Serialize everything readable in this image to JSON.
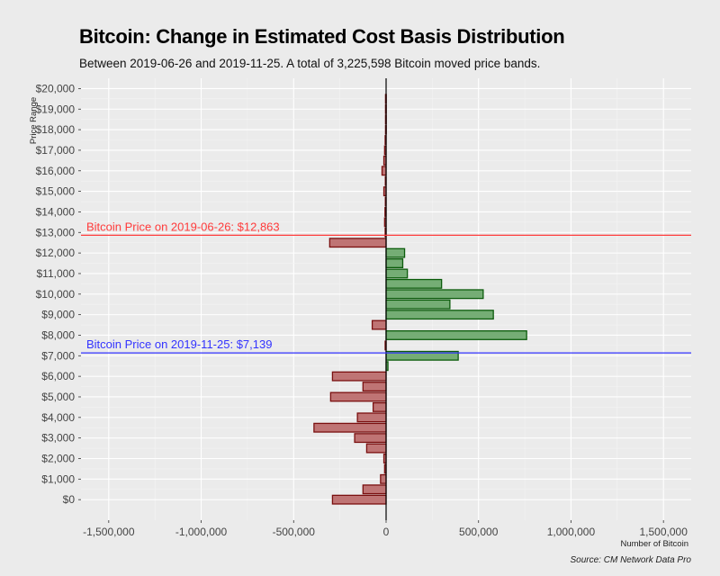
{
  "header": {
    "title": "Bitcoin: Change in Estimated Cost Basis Distribution",
    "subtitle": "Between 2019-06-26 and 2019-11-25. A total of 3,225,598 Bitcoin moved price bands."
  },
  "footer": {
    "caption": "Source: CM Network Data Pro"
  },
  "colors": {
    "positive_fill": "#75ad75",
    "positive_stroke": "#0c5c0c",
    "negative_fill": "#bf7474",
    "negative_stroke": "#7a1010",
    "ref_line_1": "#ff3b3b",
    "ref_line_2": "#3333ff",
    "zero_line": "#000000"
  },
  "chart_data": {
    "type": "bar",
    "orientation": "horizontal",
    "xlabel": "Number of Bitcoin",
    "ylabel": "Price Range",
    "xlim": [
      -1650000,
      1650000
    ],
    "ylim": [
      -1000,
      20500
    ],
    "x_ticks": [
      -1500000,
      -1000000,
      -500000,
      0,
      500000,
      1000000,
      1500000
    ],
    "x_tick_labels": [
      "-1,500,000",
      "-1,000,000",
      "-500,000",
      "0",
      "500,000",
      "1,000,000",
      "1,500,000"
    ],
    "y_ticks": [
      0,
      1000,
      2000,
      3000,
      4000,
      5000,
      6000,
      7000,
      8000,
      9000,
      10000,
      11000,
      12000,
      13000,
      14000,
      15000,
      16000,
      17000,
      18000,
      19000,
      20000
    ],
    "y_tick_labels": [
      "$0",
      "$1,000",
      "$2,000",
      "$3,000",
      "$4,000",
      "$5,000",
      "$6,000",
      "$7,000",
      "$8,000",
      "$9,000",
      "$10,000",
      "$11,000",
      "$12,000",
      "$13,000",
      "$14,000",
      "$15,000",
      "$16,000",
      "$17,000",
      "$18,000",
      "$19,000",
      "$20,000"
    ],
    "band_width": 500,
    "bars": [
      {
        "price": 0,
        "value": -290000
      },
      {
        "price": 500,
        "value": -125000
      },
      {
        "price": 1000,
        "value": -30000
      },
      {
        "price": 1500,
        "value": -8000
      },
      {
        "price": 2000,
        "value": -12000
      },
      {
        "price": 2500,
        "value": -105000
      },
      {
        "price": 3000,
        "value": -170000
      },
      {
        "price": 3500,
        "value": -390000
      },
      {
        "price": 4000,
        "value": -155000
      },
      {
        "price": 4500,
        "value": -70000
      },
      {
        "price": 5000,
        "value": -300000
      },
      {
        "price": 5500,
        "value": -125000
      },
      {
        "price": 6000,
        "value": -290000
      },
      {
        "price": 6500,
        "value": 10000
      },
      {
        "price": 7000,
        "value": 390000
      },
      {
        "price": 7500,
        "value": -5000
      },
      {
        "price": 8000,
        "value": 760000
      },
      {
        "price": 8500,
        "value": -75000
      },
      {
        "price": 9000,
        "value": 580000
      },
      {
        "price": 9500,
        "value": 345000
      },
      {
        "price": 10000,
        "value": 525000
      },
      {
        "price": 10500,
        "value": 300000
      },
      {
        "price": 11000,
        "value": 115000
      },
      {
        "price": 11500,
        "value": 90000
      },
      {
        "price": 12000,
        "value": 100000
      },
      {
        "price": 12500,
        "value": -305000
      },
      {
        "price": 13000,
        "value": -5000
      },
      {
        "price": 13500,
        "value": -8000
      },
      {
        "price": 14000,
        "value": -6000
      },
      {
        "price": 14500,
        "value": -4000
      },
      {
        "price": 15000,
        "value": -12000
      },
      {
        "price": 15500,
        "value": -4000
      },
      {
        "price": 16000,
        "value": -22000
      },
      {
        "price": 16500,
        "value": -12000
      },
      {
        "price": 17000,
        "value": -8000
      },
      {
        "price": 17500,
        "value": -5000
      },
      {
        "price": 18000,
        "value": -3000
      },
      {
        "price": 18500,
        "value": -3000
      },
      {
        "price": 19000,
        "value": -3000
      },
      {
        "price": 19500,
        "value": -3000
      }
    ],
    "reference_lines": [
      {
        "value": 12863,
        "label": "Bitcoin Price on 2019-06-26: $12,863",
        "color_key": "ref_line_1"
      },
      {
        "value": 7139,
        "label": "Bitcoin Price on 2019-11-25: $7,139",
        "color_key": "ref_line_2"
      }
    ]
  }
}
